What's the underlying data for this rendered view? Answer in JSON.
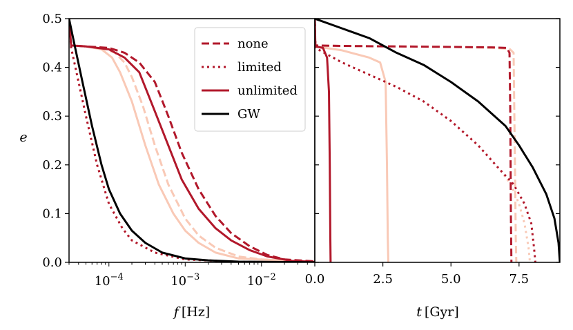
{
  "chart_data": [
    {
      "type": "line",
      "panel": "left",
      "xlabel_var": "f",
      "xlabel_unit": "[Hz]",
      "ylabel": "e",
      "xscale": "log",
      "xlim": [
        3e-05,
        0.05
      ],
      "ylim": [
        0,
        0.5
      ],
      "xticks": [
        {
          "value": 0.0001,
          "base": "10",
          "exp": "−4"
        },
        {
          "value": 0.001,
          "base": "10",
          "exp": "−3"
        },
        {
          "value": 0.01,
          "base": "10",
          "exp": "−2"
        }
      ],
      "yticks": [
        {
          "value": 0.0,
          "label": "0.0"
        },
        {
          "value": 0.1,
          "label": "0.1"
        },
        {
          "value": 0.2,
          "label": "0.2"
        },
        {
          "value": 0.3,
          "label": "0.3"
        },
        {
          "value": 0.4,
          "label": "0.4"
        },
        {
          "value": 0.5,
          "label": "0.5"
        }
      ],
      "series": [
        {
          "name": "none (faint)",
          "color": "#f9c9b6",
          "dash": "dashed",
          "points": [
            [
              3e-05,
              0.5
            ],
            [
              3.2e-05,
              0.445
            ],
            [
              5e-05,
              0.443
            ],
            [
              8e-05,
              0.44
            ],
            [
              0.00012,
              0.43
            ],
            [
              0.00016,
              0.41
            ],
            [
              0.0002,
              0.38
            ],
            [
              0.00028,
              0.32
            ],
            [
              0.0004,
              0.24
            ],
            [
              0.0006,
              0.16
            ],
            [
              0.001,
              0.09
            ],
            [
              0.0015,
              0.055
            ],
            [
              0.0025,
              0.03
            ],
            [
              0.005,
              0.012
            ],
            [
              0.01,
              0.006
            ],
            [
              0.05,
              0.001
            ]
          ]
        },
        {
          "name": "limited (faint)",
          "color": "#f9c9b6",
          "dash": "dotted",
          "points": [
            [
              3e-05,
              0.5
            ],
            [
              3.2e-05,
              0.44
            ],
            [
              4e-05,
              0.37
            ],
            [
              5e-05,
              0.3
            ],
            [
              7e-05,
              0.2
            ],
            [
              0.0001,
              0.12
            ],
            [
              0.00015,
              0.07
            ],
            [
              0.0002,
              0.045
            ],
            [
              0.0004,
              0.02
            ],
            [
              0.001,
              0.006
            ],
            [
              0.005,
              0.001
            ],
            [
              0.05,
              0.0
            ]
          ]
        },
        {
          "name": "unlimited (faint)",
          "color": "#f9c9b6",
          "dash": "solid",
          "points": [
            [
              3e-05,
              0.5
            ],
            [
              3.2e-05,
              0.445
            ],
            [
              5e-05,
              0.443
            ],
            [
              8e-05,
              0.437
            ],
            [
              0.00011,
              0.42
            ],
            [
              0.00014,
              0.39
            ],
            [
              0.0002,
              0.33
            ],
            [
              0.0003,
              0.24
            ],
            [
              0.00045,
              0.16
            ],
            [
              0.0007,
              0.1
            ],
            [
              0.001,
              0.065
            ],
            [
              0.0015,
              0.04
            ],
            [
              0.0025,
              0.02
            ],
            [
              0.005,
              0.008
            ],
            [
              0.05,
              0.0005
            ]
          ]
        },
        {
          "name": "none",
          "color": "#b2182b",
          "dash": "dashed",
          "points": [
            [
              3e-05,
              0.5
            ],
            [
              3.2e-05,
              0.445
            ],
            [
              5e-05,
              0.443
            ],
            [
              0.0001,
              0.44
            ],
            [
              0.00016,
              0.43
            ],
            [
              0.00025,
              0.41
            ],
            [
              0.0004,
              0.37
            ],
            [
              0.0006,
              0.3
            ],
            [
              0.0009,
              0.225
            ],
            [
              0.0015,
              0.15
            ],
            [
              0.0025,
              0.095
            ],
            [
              0.004,
              0.06
            ],
            [
              0.007,
              0.033
            ],
            [
              0.012,
              0.015
            ],
            [
              0.02,
              0.006
            ],
            [
              0.05,
              0.002
            ]
          ]
        },
        {
          "name": "limited",
          "color": "#b2182b",
          "dash": "dotted",
          "points": [
            [
              3e-05,
              0.5
            ],
            [
              3.2e-05,
              0.44
            ],
            [
              4e-05,
              0.37
            ],
            [
              5e-05,
              0.3
            ],
            [
              7e-05,
              0.2
            ],
            [
              0.0001,
              0.12
            ],
            [
              0.00015,
              0.07
            ],
            [
              0.0002,
              0.045
            ],
            [
              0.0004,
              0.02
            ],
            [
              0.001,
              0.006
            ],
            [
              0.005,
              0.001
            ],
            [
              0.05,
              0.0
            ]
          ]
        },
        {
          "name": "unlimited",
          "color": "#b2182b",
          "dash": "solid",
          "points": [
            [
              3e-05,
              0.5
            ],
            [
              3.2e-05,
              0.445
            ],
            [
              5e-05,
              0.443
            ],
            [
              0.0001,
              0.437
            ],
            [
              0.00016,
              0.42
            ],
            [
              0.00025,
              0.39
            ],
            [
              0.0004,
              0.31
            ],
            [
              0.0006,
              0.24
            ],
            [
              0.0009,
              0.17
            ],
            [
              0.0015,
              0.11
            ],
            [
              0.0025,
              0.07
            ],
            [
              0.004,
              0.045
            ],
            [
              0.007,
              0.025
            ],
            [
              0.012,
              0.012
            ],
            [
              0.025,
              0.003
            ],
            [
              0.05,
              0.001
            ]
          ]
        },
        {
          "name": "GW",
          "color": "#000000",
          "dash": "solid",
          "points": [
            [
              3e-05,
              0.5
            ],
            [
              3.5e-05,
              0.45
            ],
            [
              4.5e-05,
              0.37
            ],
            [
              6e-05,
              0.28
            ],
            [
              8e-05,
              0.2
            ],
            [
              0.0001,
              0.15
            ],
            [
              0.00014,
              0.1
            ],
            [
              0.0002,
              0.065
            ],
            [
              0.0003,
              0.04
            ],
            [
              0.0005,
              0.02
            ],
            [
              0.001,
              0.008
            ],
            [
              0.002,
              0.004
            ],
            [
              0.005,
              0.0015
            ],
            [
              0.05,
              0.0001
            ]
          ]
        }
      ]
    },
    {
      "type": "line",
      "panel": "right",
      "xlabel_var": "t",
      "xlabel_unit": "[Gyr]",
      "xlim": [
        0,
        9.0
      ],
      "ylim": [
        0,
        0.5
      ],
      "xticks": [
        {
          "value": 0.0,
          "label": "0.0"
        },
        {
          "value": 2.5,
          "label": "2.5"
        },
        {
          "value": 5.0,
          "label": "5.0"
        },
        {
          "value": 7.5,
          "label": "7.5"
        }
      ],
      "series": [
        {
          "name": "none (faint)",
          "color": "#f9c9b6",
          "dash": "dashed",
          "points": [
            [
              0,
              0.5
            ],
            [
              0.02,
              0.445
            ],
            [
              1,
              0.444
            ],
            [
              3,
              0.443
            ],
            [
              5,
              0.442
            ],
            [
              6.5,
              0.44
            ],
            [
              7.15,
              0.438
            ],
            [
              7.3,
              0.43
            ],
            [
              7.35,
              0.2
            ],
            [
              7.38,
              0.05
            ],
            [
              7.4,
              0.0
            ]
          ]
        },
        {
          "name": "limited (faint)",
          "color": "#f9c9b6",
          "dash": "dotted",
          "points": [
            [
              0,
              0.5
            ],
            [
              0.02,
              0.44
            ],
            [
              1,
              0.41
            ],
            [
              2,
              0.385
            ],
            [
              3,
              0.36
            ],
            [
              4,
              0.33
            ],
            [
              5,
              0.29
            ],
            [
              6,
              0.24
            ],
            [
              6.8,
              0.19
            ],
            [
              7.2,
              0.16
            ],
            [
              7.5,
              0.12
            ],
            [
              7.7,
              0.08
            ],
            [
              7.85,
              0.03
            ],
            [
              7.9,
              0.0
            ]
          ]
        },
        {
          "name": "unlimited (faint)",
          "color": "#f9c9b6",
          "dash": "solid",
          "points": [
            [
              0,
              0.5
            ],
            [
              0.02,
              0.443
            ],
            [
              1,
              0.435
            ],
            [
              2,
              0.42
            ],
            [
              2.4,
              0.41
            ],
            [
              2.6,
              0.37
            ],
            [
              2.65,
              0.2
            ],
            [
              2.68,
              0.05
            ],
            [
              2.7,
              0.0
            ]
          ]
        },
        {
          "name": "none",
          "color": "#b2182b",
          "dash": "dashed",
          "points": [
            [
              0,
              0.5
            ],
            [
              0.02,
              0.445
            ],
            [
              1,
              0.444
            ],
            [
              3,
              0.443
            ],
            [
              5,
              0.442
            ],
            [
              6.5,
              0.441
            ],
            [
              7.05,
              0.44
            ],
            [
              7.15,
              0.43
            ],
            [
              7.18,
              0.3
            ],
            [
              7.2,
              0.1
            ],
            [
              7.22,
              0.0
            ]
          ]
        },
        {
          "name": "limited",
          "color": "#b2182b",
          "dash": "dotted",
          "points": [
            [
              0,
              0.5
            ],
            [
              0.02,
              0.44
            ],
            [
              1,
              0.41
            ],
            [
              2,
              0.385
            ],
            [
              3,
              0.36
            ],
            [
              4,
              0.33
            ],
            [
              5,
              0.29
            ],
            [
              6,
              0.24
            ],
            [
              6.8,
              0.19
            ],
            [
              7.3,
              0.16
            ],
            [
              7.7,
              0.12
            ],
            [
              7.95,
              0.08
            ],
            [
              8.05,
              0.03
            ],
            [
              8.1,
              0.0
            ]
          ]
        },
        {
          "name": "unlimited",
          "color": "#b2182b",
          "dash": "solid",
          "points": [
            [
              0,
              0.5
            ],
            [
              0.02,
              0.443
            ],
            [
              0.3,
              0.44
            ],
            [
              0.45,
              0.42
            ],
            [
              0.52,
              0.35
            ],
            [
              0.55,
              0.2
            ],
            [
              0.57,
              0.05
            ],
            [
              0.58,
              0.0
            ]
          ]
        },
        {
          "name": "GW",
          "color": "#000000",
          "dash": "solid",
          "points": [
            [
              0,
              0.5
            ],
            [
              1,
              0.48
            ],
            [
              2,
              0.46
            ],
            [
              3,
              0.43
            ],
            [
              4,
              0.405
            ],
            [
              5,
              0.37
            ],
            [
              6,
              0.33
            ],
            [
              7,
              0.28
            ],
            [
              7.5,
              0.24
            ],
            [
              8,
              0.195
            ],
            [
              8.5,
              0.14
            ],
            [
              8.8,
              0.09
            ],
            [
              8.95,
              0.04
            ],
            [
              9.0,
              0.0
            ]
          ]
        }
      ]
    }
  ],
  "legend": {
    "placement": "top-right of left panel",
    "entries": [
      {
        "label": "none",
        "color": "#b2182b",
        "dash": "dashed"
      },
      {
        "label": "limited",
        "color": "#b2182b",
        "dash": "dotted"
      },
      {
        "label": "unlimited",
        "color": "#b2182b",
        "dash": "solid"
      },
      {
        "label": "GW",
        "color": "#000000",
        "dash": "solid"
      }
    ]
  }
}
